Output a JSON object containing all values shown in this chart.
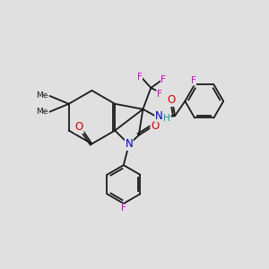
{
  "bg_color": "#e0e0e0",
  "bond_color": "#1a1a1a",
  "atom_colors": {
    "O": "#dd0000",
    "N": "#0000cc",
    "F": "#cc00cc",
    "H": "#009999",
    "C": "#1a1a1a"
  },
  "font_size": 7.5,
  "lw": 1.3
}
